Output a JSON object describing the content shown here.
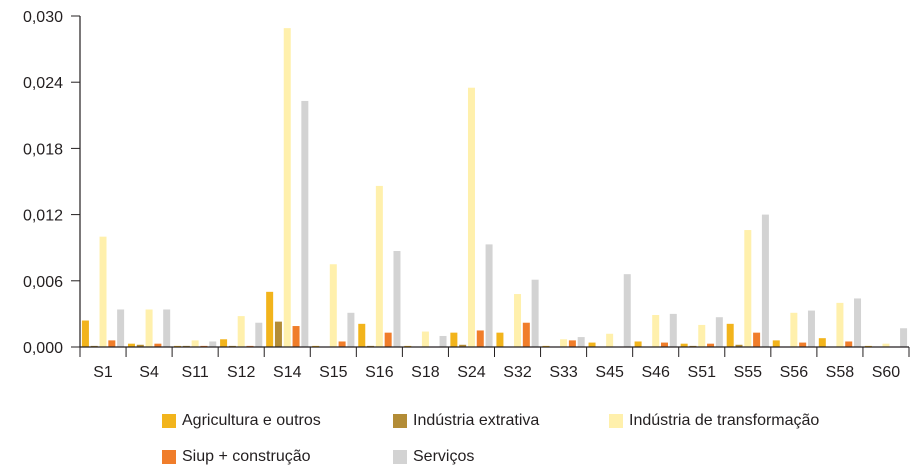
{
  "chart_data": {
    "type": "bar",
    "categories": [
      "S1",
      "S4",
      "S11",
      "S12",
      "S14",
      "S15",
      "S16",
      "S18",
      "S24",
      "S32",
      "S33",
      "S45",
      "S46",
      "S51",
      "S55",
      "S56",
      "S58",
      "S60"
    ],
    "y_ticks": [
      "0,000",
      "0,006",
      "0,012",
      "0,018",
      "0,024",
      "0,030"
    ],
    "ylim": [
      0,
      0.03
    ],
    "grid": false,
    "legend_position": "bottom",
    "series": [
      {
        "name": "Agricultura e outros",
        "color": "#f2b41c",
        "values": [
          0.0024,
          0.0003,
          0.0001,
          0.0007,
          0.005,
          0.0001,
          0.0021,
          0.0001,
          0.0013,
          0.0013,
          0.0001,
          0.0004,
          0.0005,
          0.0003,
          0.0021,
          0.0006,
          0.0008,
          0.0001
        ]
      },
      {
        "name": "Indústria extrativa",
        "color": "#b38c36",
        "values": [
          0.0001,
          0.0002,
          0.0001,
          0.0001,
          0.0023,
          0.0,
          0.0001,
          0.0,
          0.0002,
          0.0,
          0.0,
          0.0,
          0.0,
          0.0001,
          0.0002,
          0.0,
          0.0,
          0.0
        ]
      },
      {
        "name": "Indústria de transformação",
        "color": "#fff0ac",
        "values": [
          0.01,
          0.0034,
          0.0006,
          0.0028,
          0.0289,
          0.0075,
          0.0146,
          0.0014,
          0.0235,
          0.0048,
          0.0007,
          0.0012,
          0.0029,
          0.002,
          0.0106,
          0.0031,
          0.004,
          0.0003
        ]
      },
      {
        "name": "Siup + construção",
        "color": "#f07d2a",
        "values": [
          0.0006,
          0.0003,
          0.0001,
          0.0001,
          0.0019,
          0.0005,
          0.0013,
          0.0,
          0.0015,
          0.0022,
          0.0006,
          0.0,
          0.0004,
          0.0003,
          0.0013,
          0.0004,
          0.0005,
          0.0
        ]
      },
      {
        "name": "Serviços",
        "color": "#d3d3d3",
        "values": [
          0.0034,
          0.0034,
          0.0005,
          0.0022,
          0.0223,
          0.0031,
          0.0087,
          0.001,
          0.0093,
          0.0061,
          0.0009,
          0.0066,
          0.003,
          0.0027,
          0.012,
          0.0033,
          0.0044,
          0.0017
        ]
      }
    ]
  }
}
